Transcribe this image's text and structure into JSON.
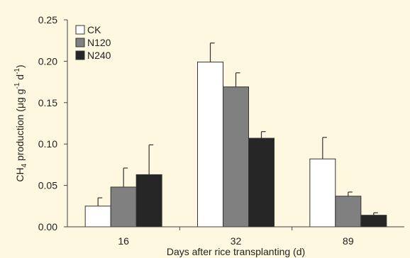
{
  "chart_data": {
    "type": "bar",
    "title": "",
    "categories": [
      "16",
      "32",
      "89"
    ],
    "xlabel": "Days after rice transplanting (d)",
    "ylabel": {
      "prefix": "CH",
      "sub": "4",
      "main": " production (μg g",
      "sup1": "-1",
      "mid": " d",
      "sup2": "-1",
      "suffix": ")"
    },
    "ylim": [
      0,
      0.25
    ],
    "yticks": [
      "0.00",
      "0.05",
      "0.10",
      "0.15",
      "0.20",
      "0.25"
    ],
    "legend_position": "top-left",
    "series": [
      {
        "name": "CK",
        "color": "#ffffff",
        "values": [
          0.025,
          0.199,
          0.082
        ],
        "errors": [
          0.01,
          0.023,
          0.026
        ]
      },
      {
        "name": "N120",
        "color": "#808080",
        "values": [
          0.048,
          0.169,
          0.037
        ],
        "errors": [
          0.023,
          0.017,
          0.005
        ]
      },
      {
        "name": "N240",
        "color": "#262626",
        "values": [
          0.063,
          0.107,
          0.014
        ],
        "errors": [
          0.036,
          0.008,
          0.003
        ]
      }
    ]
  }
}
